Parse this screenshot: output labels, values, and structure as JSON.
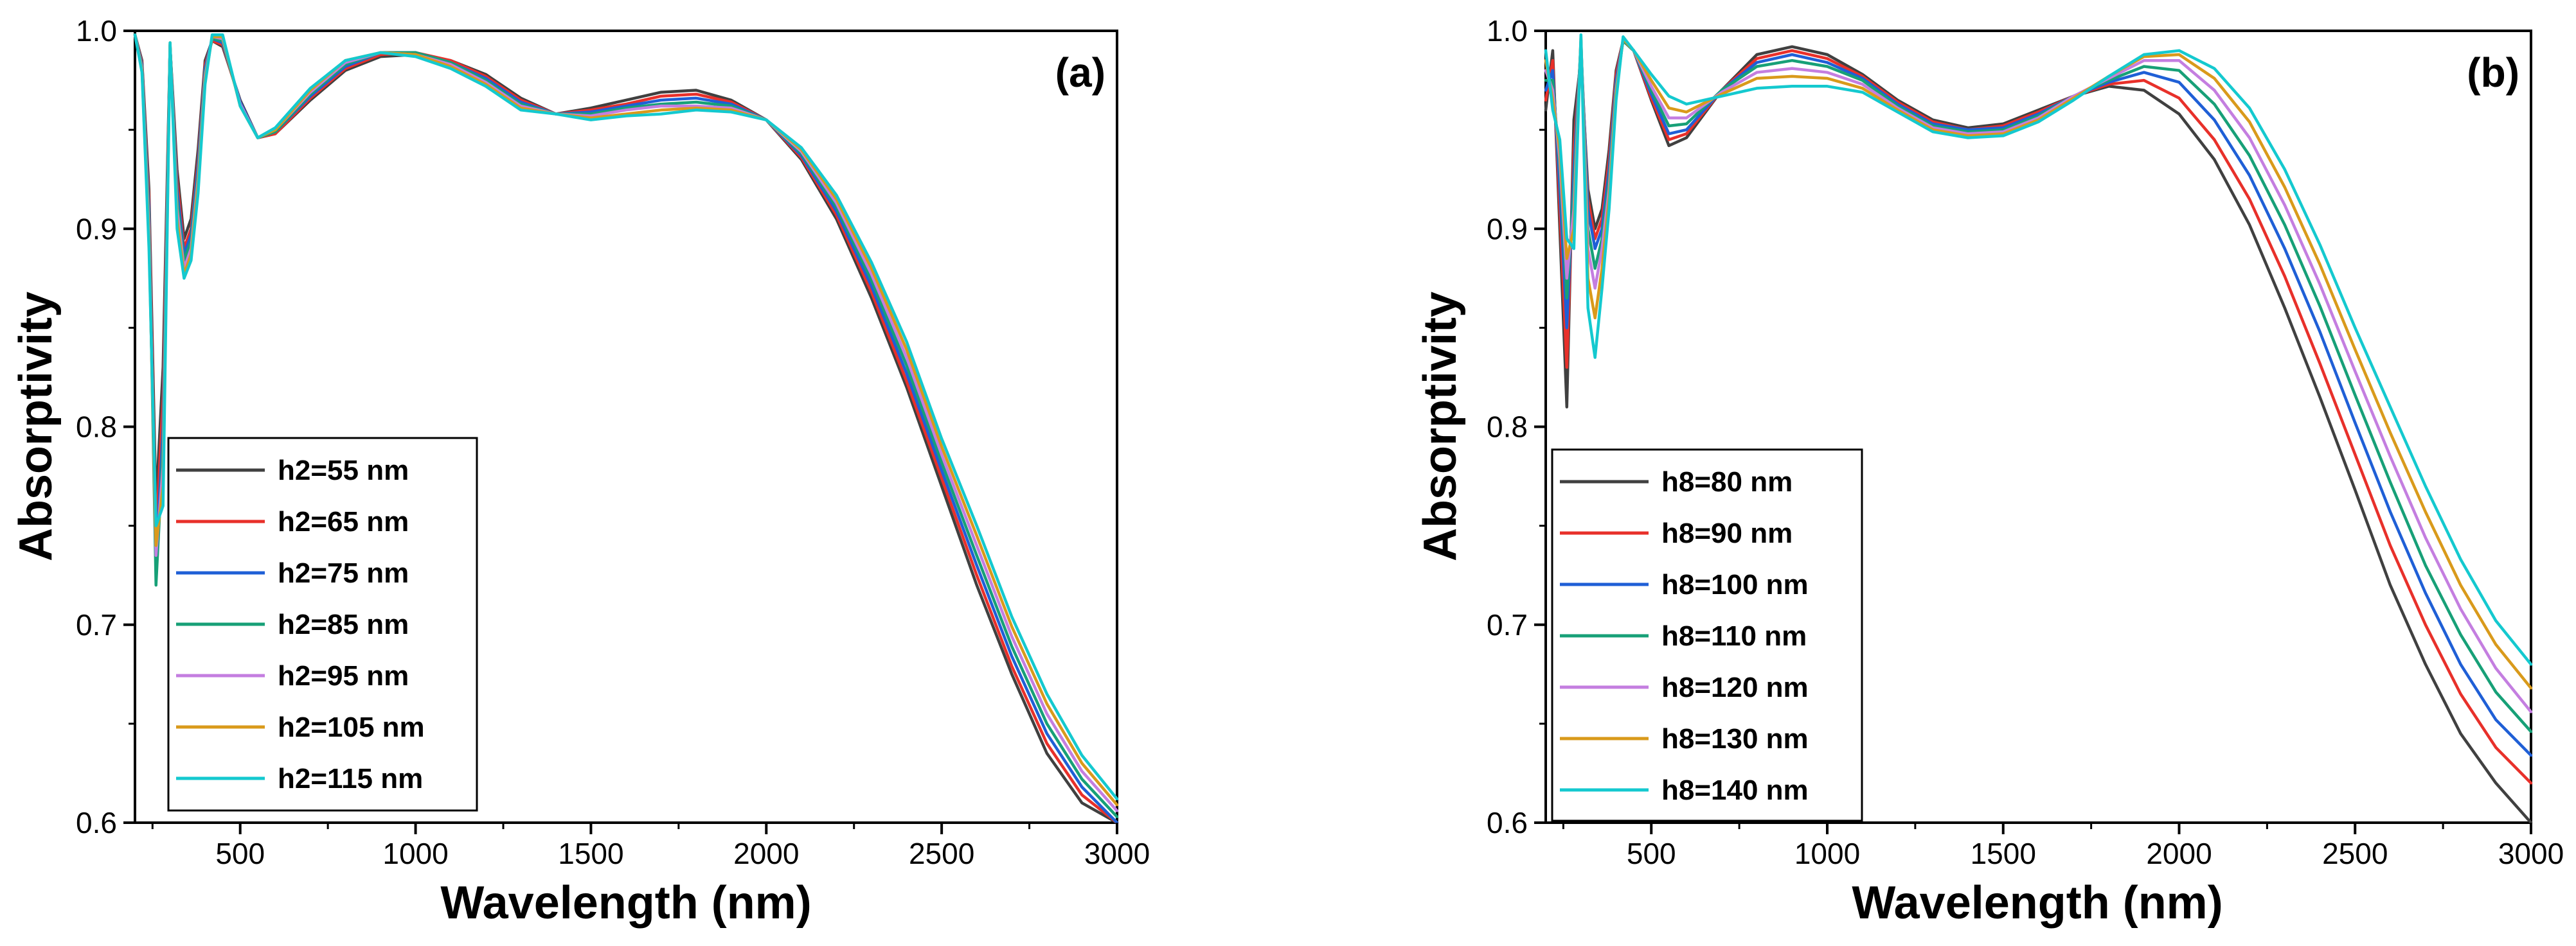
{
  "chart_data": [
    {
      "type": "line",
      "panel_label": "(a)",
      "title": "",
      "xlabel": "Wavelength (nm)",
      "ylabel": "Absorptivity",
      "xlim": [
        200,
        3000
      ],
      "ylim": [
        0.6,
        1.0
      ],
      "x_ticks": [
        500,
        1000,
        1500,
        2000,
        2500,
        3000
      ],
      "x_tick_labels": [
        "500",
        "1000",
        "1500",
        "2000",
        "2500",
        "3000"
      ],
      "y_ticks": [
        0.6,
        0.7,
        0.8,
        0.9,
        1.0
      ],
      "y_tick_labels": [
        "0.6",
        "0.7",
        "0.8",
        "0.9",
        "1.0"
      ],
      "legend_position": "bottom-left",
      "x": [
        200,
        220,
        240,
        260,
        280,
        300,
        320,
        340,
        360,
        380,
        400,
        420,
        450,
        500,
        550,
        600,
        700,
        800,
        900,
        1000,
        1100,
        1200,
        1300,
        1400,
        1500,
        1600,
        1700,
        1800,
        1900,
        2000,
        2100,
        2200,
        2300,
        2400,
        2500,
        2600,
        2700,
        2800,
        2900,
        3000
      ],
      "series": [
        {
          "name": "h2=55 nm",
          "color": "#404040",
          "values": [
            0.998,
            0.985,
            0.92,
            0.76,
            0.83,
            0.992,
            0.93,
            0.895,
            0.905,
            0.94,
            0.985,
            0.995,
            0.992,
            0.965,
            0.946,
            0.948,
            0.965,
            0.98,
            0.987,
            0.988,
            0.985,
            0.978,
            0.966,
            0.958,
            0.961,
            0.965,
            0.969,
            0.97,
            0.965,
            0.955,
            0.935,
            0.905,
            0.865,
            0.82,
            0.77,
            0.72,
            0.675,
            0.635,
            0.61,
            0.594
          ]
        },
        {
          "name": "h2=65 nm",
          "color": "#e8302a",
          "values": [
            0.998,
            0.984,
            0.915,
            0.745,
            0.815,
            0.992,
            0.925,
            0.89,
            0.9,
            0.935,
            0.983,
            0.995,
            0.993,
            0.964,
            0.946,
            0.948,
            0.966,
            0.981,
            0.988,
            0.989,
            0.985,
            0.977,
            0.965,
            0.958,
            0.96,
            0.963,
            0.967,
            0.968,
            0.964,
            0.955,
            0.936,
            0.907,
            0.868,
            0.823,
            0.774,
            0.725,
            0.679,
            0.64,
            0.614,
            0.597
          ]
        },
        {
          "name": "h2=75 nm",
          "color": "#1f5fd6",
          "values": [
            0.998,
            0.983,
            0.91,
            0.73,
            0.8,
            0.993,
            0.92,
            0.887,
            0.897,
            0.932,
            0.981,
            0.996,
            0.994,
            0.964,
            0.946,
            0.949,
            0.967,
            0.982,
            0.989,
            0.989,
            0.984,
            0.976,
            0.964,
            0.958,
            0.959,
            0.962,
            0.965,
            0.966,
            0.963,
            0.955,
            0.937,
            0.909,
            0.871,
            0.827,
            0.778,
            0.73,
            0.684,
            0.645,
            0.618,
            0.6
          ]
        },
        {
          "name": "h2=85 nm",
          "color": "#17a077",
          "values": [
            0.998,
            0.982,
            0.905,
            0.72,
            0.79,
            0.993,
            0.915,
            0.884,
            0.894,
            0.928,
            0.979,
            0.996,
            0.995,
            0.963,
            0.946,
            0.949,
            0.968,
            0.983,
            0.989,
            0.989,
            0.984,
            0.975,
            0.963,
            0.958,
            0.958,
            0.961,
            0.963,
            0.964,
            0.962,
            0.955,
            0.938,
            0.911,
            0.874,
            0.831,
            0.782,
            0.735,
            0.689,
            0.65,
            0.622,
            0.603
          ]
        },
        {
          "name": "h2=95 nm",
          "color": "#c47ee0",
          "values": [
            0.998,
            0.981,
            0.9,
            0.735,
            0.78,
            0.993,
            0.91,
            0.88,
            0.89,
            0.925,
            0.977,
            0.997,
            0.996,
            0.963,
            0.946,
            0.95,
            0.969,
            0.984,
            0.989,
            0.988,
            0.983,
            0.974,
            0.962,
            0.958,
            0.957,
            0.96,
            0.962,
            0.962,
            0.961,
            0.955,
            0.939,
            0.913,
            0.877,
            0.835,
            0.786,
            0.74,
            0.694,
            0.655,
            0.626,
            0.606
          ]
        },
        {
          "name": "h2=105 nm",
          "color": "#d99a1b",
          "values": [
            0.998,
            0.98,
            0.895,
            0.74,
            0.77,
            0.994,
            0.905,
            0.877,
            0.887,
            0.922,
            0.975,
            0.997,
            0.997,
            0.962,
            0.946,
            0.95,
            0.97,
            0.985,
            0.989,
            0.988,
            0.982,
            0.973,
            0.961,
            0.958,
            0.956,
            0.958,
            0.96,
            0.961,
            0.96,
            0.955,
            0.94,
            0.915,
            0.88,
            0.839,
            0.79,
            0.745,
            0.699,
            0.66,
            0.63,
            0.609
          ]
        },
        {
          "name": "h2=115 nm",
          "color": "#14c9cf",
          "values": [
            0.998,
            0.979,
            0.89,
            0.75,
            0.76,
            0.994,
            0.9,
            0.875,
            0.884,
            0.918,
            0.973,
            0.998,
            0.998,
            0.962,
            0.946,
            0.951,
            0.971,
            0.985,
            0.989,
            0.987,
            0.981,
            0.972,
            0.96,
            0.958,
            0.955,
            0.957,
            0.958,
            0.96,
            0.959,
            0.955,
            0.941,
            0.917,
            0.883,
            0.843,
            0.794,
            0.75,
            0.704,
            0.665,
            0.634,
            0.612
          ]
        }
      ]
    },
    {
      "type": "line",
      "panel_label": "(b)",
      "title": "",
      "xlabel": "Wavelength (nm)",
      "ylabel": "Absorptivity",
      "xlim": [
        200,
        3000
      ],
      "ylim": [
        0.6,
        1.0
      ],
      "x_ticks": [
        500,
        1000,
        1500,
        2000,
        2500,
        3000
      ],
      "x_tick_labels": [
        "500",
        "1000",
        "1500",
        "2000",
        "2500",
        "3000"
      ],
      "y_ticks": [
        0.6,
        0.7,
        0.8,
        0.9,
        1.0
      ],
      "y_tick_labels": [
        "0.6",
        "0.7",
        "0.8",
        "0.9",
        "1.0"
      ],
      "legend_position": "bottom-left",
      "x": [
        200,
        220,
        240,
        260,
        280,
        300,
        320,
        340,
        360,
        380,
        400,
        420,
        450,
        500,
        550,
        600,
        700,
        800,
        900,
        1000,
        1100,
        1200,
        1300,
        1400,
        1500,
        1600,
        1700,
        1800,
        1900,
        2000,
        2100,
        2200,
        2300,
        2400,
        2500,
        2600,
        2700,
        2800,
        2900,
        3000
      ],
      "series": [
        {
          "name": "h8=80 nm",
          "color": "#404040",
          "values": [
            0.96,
            0.99,
            0.9,
            0.81,
            0.955,
            0.985,
            0.92,
            0.9,
            0.91,
            0.94,
            0.98,
            0.995,
            0.99,
            0.965,
            0.942,
            0.946,
            0.97,
            0.988,
            0.992,
            0.988,
            0.978,
            0.965,
            0.955,
            0.951,
            0.953,
            0.96,
            0.967,
            0.972,
            0.97,
            0.958,
            0.935,
            0.902,
            0.86,
            0.815,
            0.768,
            0.72,
            0.68,
            0.645,
            0.62,
            0.6
          ]
        },
        {
          "name": "h8=90 nm",
          "color": "#e8302a",
          "values": [
            0.965,
            0.985,
            0.91,
            0.83,
            0.94,
            0.99,
            0.915,
            0.895,
            0.905,
            0.935,
            0.978,
            0.995,
            0.99,
            0.966,
            0.945,
            0.948,
            0.97,
            0.986,
            0.99,
            0.986,
            0.977,
            0.964,
            0.954,
            0.95,
            0.952,
            0.959,
            0.967,
            0.973,
            0.975,
            0.966,
            0.945,
            0.915,
            0.876,
            0.832,
            0.786,
            0.74,
            0.7,
            0.665,
            0.638,
            0.62
          ]
        },
        {
          "name": "h8=100 nm",
          "color": "#1f5fd6",
          "values": [
            0.97,
            0.98,
            0.92,
            0.85,
            0.93,
            0.993,
            0.91,
            0.89,
            0.9,
            0.93,
            0.975,
            0.995,
            0.99,
            0.968,
            0.948,
            0.95,
            0.97,
            0.984,
            0.988,
            0.984,
            0.976,
            0.963,
            0.953,
            0.95,
            0.951,
            0.958,
            0.967,
            0.974,
            0.979,
            0.974,
            0.955,
            0.927,
            0.89,
            0.848,
            0.802,
            0.757,
            0.716,
            0.68,
            0.652,
            0.634
          ]
        },
        {
          "name": "h8=110 nm",
          "color": "#17a077",
          "values": [
            0.975,
            0.975,
            0.93,
            0.865,
            0.92,
            0.995,
            0.9,
            0.88,
            0.895,
            0.925,
            0.972,
            0.995,
            0.99,
            0.97,
            0.952,
            0.953,
            0.97,
            0.982,
            0.985,
            0.982,
            0.975,
            0.962,
            0.952,
            0.949,
            0.95,
            0.957,
            0.967,
            0.975,
            0.982,
            0.98,
            0.963,
            0.937,
            0.902,
            0.861,
            0.816,
            0.772,
            0.73,
            0.695,
            0.666,
            0.646
          ]
        },
        {
          "name": "h8=120 nm",
          "color": "#c47ee0",
          "values": [
            0.98,
            0.97,
            0.935,
            0.875,
            0.91,
            0.996,
            0.89,
            0.87,
            0.89,
            0.92,
            0.97,
            0.996,
            0.99,
            0.972,
            0.956,
            0.956,
            0.969,
            0.979,
            0.981,
            0.979,
            0.973,
            0.961,
            0.951,
            0.948,
            0.949,
            0.956,
            0.967,
            0.976,
            0.985,
            0.985,
            0.97,
            0.946,
            0.912,
            0.872,
            0.828,
            0.785,
            0.744,
            0.708,
            0.678,
            0.656
          ]
        },
        {
          "name": "h8=130 nm",
          "color": "#d99a1b",
          "values": [
            0.985,
            0.965,
            0.94,
            0.885,
            0.9,
            0.997,
            0.875,
            0.855,
            0.88,
            0.915,
            0.968,
            0.996,
            0.99,
            0.975,
            0.961,
            0.959,
            0.968,
            0.976,
            0.977,
            0.976,
            0.971,
            0.96,
            0.95,
            0.947,
            0.948,
            0.955,
            0.966,
            0.977,
            0.987,
            0.988,
            0.976,
            0.954,
            0.921,
            0.882,
            0.839,
            0.797,
            0.757,
            0.72,
            0.69,
            0.668
          ]
        },
        {
          "name": "h8=140 nm",
          "color": "#14c9cf",
          "values": [
            0.99,
            0.96,
            0.945,
            0.895,
            0.89,
            0.998,
            0.86,
            0.835,
            0.87,
            0.91,
            0.965,
            0.997,
            0.99,
            0.978,
            0.967,
            0.963,
            0.967,
            0.971,
            0.972,
            0.972,
            0.969,
            0.959,
            0.949,
            0.946,
            0.947,
            0.954,
            0.965,
            0.977,
            0.988,
            0.99,
            0.981,
            0.961,
            0.93,
            0.892,
            0.85,
            0.81,
            0.77,
            0.733,
            0.702,
            0.68
          ]
        }
      ]
    }
  ]
}
